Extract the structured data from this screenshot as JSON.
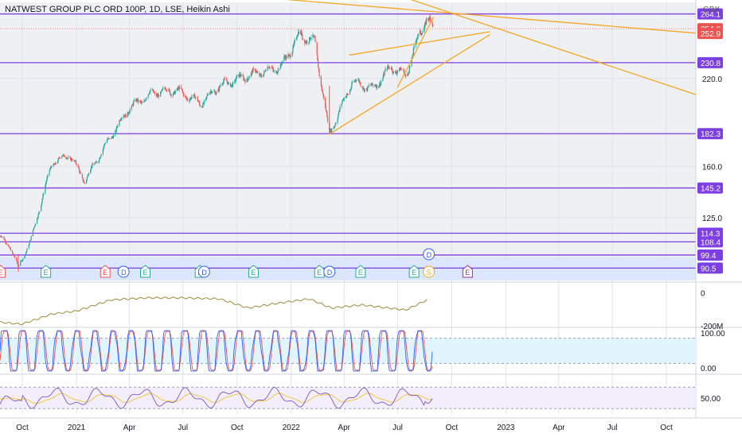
{
  "symbol_title": "NATWEST GROUP PLC ORD 100P, 1D, LSE, Heikin Ashi",
  "currency": "GBX",
  "colors": {
    "up": "#26a69a",
    "down": "#ef5350",
    "level": "#7b3fe4",
    "trend": "#f5a623",
    "zone": "#dde6ff",
    "last_price": "#ef5350",
    "volume_line": "#a08a3a",
    "stoch_k": "#2962ff",
    "stoch_d": "#ef5350",
    "rsi": "#7e57c2",
    "rsi_ma": "#f5c542"
  },
  "chart_data": {
    "type": "candlestick",
    "style": "Heikin Ashi",
    "interval": "1D",
    "x_axis": {
      "start": "2020-08-24",
      "end": "2023-11-20",
      "tick_labels": [
        "Oct",
        "2021",
        "Apr",
        "Jul",
        "Oct",
        "2022",
        "Apr",
        "Jul",
        "Oct",
        "2023",
        "Apr",
        "Jul",
        "Oct"
      ]
    },
    "y_axis": {
      "range": [
        82,
        272
      ],
      "tick_labels": [
        "220.0",
        "160.0",
        "125.0"
      ],
      "tick_values": [
        220,
        160,
        125
      ]
    },
    "price_path": [
      {
        "date": "2020-08-24",
        "price": 112
      },
      {
        "date": "2020-09-10",
        "price": 105
      },
      {
        "date": "2020-09-24",
        "price": 91
      },
      {
        "date": "2020-10-15",
        "price": 109
      },
      {
        "date": "2020-11-20",
        "price": 162
      },
      {
        "date": "2020-12-20",
        "price": 168
      },
      {
        "date": "2021-01-15",
        "price": 150
      },
      {
        "date": "2021-02-20",
        "price": 175
      },
      {
        "date": "2021-04-01",
        "price": 200
      },
      {
        "date": "2021-05-10",
        "price": 210
      },
      {
        "date": "2021-06-20",
        "price": 212
      },
      {
        "date": "2021-08-01",
        "price": 203
      },
      {
        "date": "2021-09-01",
        "price": 215
      },
      {
        "date": "2021-10-20",
        "price": 222
      },
      {
        "date": "2021-12-15",
        "price": 228
      },
      {
        "date": "2022-01-15",
        "price": 250
      },
      {
        "date": "2022-02-10",
        "price": 245
      },
      {
        "date": "2022-03-07",
        "price": 182
      },
      {
        "date": "2022-04-15",
        "price": 218
      },
      {
        "date": "2022-05-20",
        "price": 213
      },
      {
        "date": "2022-06-20",
        "price": 228
      },
      {
        "date": "2022-07-15",
        "price": 222
      },
      {
        "date": "2022-08-05",
        "price": 248
      },
      {
        "date": "2022-08-20",
        "price": 262
      },
      {
        "date": "2022-08-30",
        "price": 254
      }
    ],
    "horizontal_levels": [
      {
        "value": 264.1,
        "label": "264.1"
      },
      {
        "value": 230.8,
        "label": "230.8"
      },
      {
        "value": 182.3,
        "label": "182.3"
      },
      {
        "value": 145.2,
        "label": "145.2"
      },
      {
        "value": 114.3,
        "label": "114.3"
      },
      {
        "value": 108.4,
        "label": "108.4"
      },
      {
        "value": 99.4,
        "label": "99.4"
      },
      {
        "value": 90.5,
        "label": "90.5"
      }
    ],
    "last_price": {
      "value": 254.0,
      "label": "254.0"
    },
    "prev_close": {
      "value": 252.9,
      "label": "252.9"
    },
    "zone": {
      "from": 82,
      "to": 98
    },
    "trendlines": [
      {
        "from": {
          "date": "2020-08-24",
          "price": 290
        },
        "to": {
          "date": "2023-11-20",
          "price": 251
        }
      },
      {
        "from": {
          "date": "2022-01-10",
          "price": 300
        },
        "to": {
          "date": "2023-11-20",
          "price": 209
        }
      },
      {
        "from": {
          "date": "2022-03-07",
          "price": 182
        },
        "to": {
          "date": "2022-12-05",
          "price": 250
        }
      },
      {
        "from": {
          "date": "2022-04-10",
          "price": 236
        },
        "to": {
          "date": "2022-12-05",
          "price": 252
        }
      },
      {
        "from": {
          "date": "2022-07-01",
          "price": 214
        },
        "to": {
          "date": "2022-08-31",
          "price": 262
        }
      }
    ],
    "events": [
      {
        "date": "2020-08-25",
        "type": "E",
        "kind": "earnings-neg"
      },
      {
        "date": "2020-11-10",
        "type": "E",
        "kind": "earnings-pos"
      },
      {
        "date": "2021-02-19",
        "type": "E",
        "kind": "earnings-neg"
      },
      {
        "date": "2021-03-22",
        "type": "D",
        "kind": "dividend"
      },
      {
        "date": "2021-04-28",
        "type": "E",
        "kind": "earnings-pos"
      },
      {
        "date": "2021-07-30",
        "type": "E",
        "kind": "earnings-pos"
      },
      {
        "date": "2021-08-06",
        "type": "D",
        "kind": "dividend"
      },
      {
        "date": "2021-10-29",
        "type": "E",
        "kind": "earnings-pos"
      },
      {
        "date": "2022-02-18",
        "type": "E",
        "kind": "earnings-pos"
      },
      {
        "date": "2022-03-07",
        "type": "D",
        "kind": "dividend"
      },
      {
        "date": "2022-04-29",
        "type": "E",
        "kind": "earnings-pos"
      },
      {
        "date": "2022-07-29",
        "type": "E",
        "kind": "earnings-pos"
      },
      {
        "date": "2022-08-23",
        "type": "S",
        "kind": "split"
      },
      {
        "date": "2022-08-23",
        "type": "D",
        "kind": "dividend-upcoming",
        "row": "upper"
      },
      {
        "date": "2022-10-28",
        "type": "E",
        "kind": "earnings-future"
      }
    ],
    "volume_indicator": {
      "tick_labels": [
        "0",
        "-200M"
      ],
      "path": [
        {
          "date": "2020-08-24",
          "value": -0.9
        },
        {
          "date": "2020-09-30",
          "value": -1.0
        },
        {
          "date": "2020-11-20",
          "value": -0.5
        },
        {
          "date": "2021-01-01",
          "value": -0.35
        },
        {
          "date": "2021-03-01",
          "value": 0.2
        },
        {
          "date": "2021-05-01",
          "value": 0.3
        },
        {
          "date": "2021-07-01",
          "value": 0.3
        },
        {
          "date": "2021-09-01",
          "value": 0.25
        },
        {
          "date": "2021-10-20",
          "value": -0.2
        },
        {
          "date": "2021-12-01",
          "value": 0.0
        },
        {
          "date": "2022-02-01",
          "value": 0.25
        },
        {
          "date": "2022-03-10",
          "value": -0.2
        },
        {
          "date": "2022-05-01",
          "value": -0.05
        },
        {
          "date": "2022-07-15",
          "value": -0.3
        },
        {
          "date": "2022-08-20",
          "value": 0.2
        }
      ]
    },
    "stochastic": {
      "tick_labels": [
        "100.00",
        "0.00"
      ],
      "band": [
        20,
        80
      ],
      "cycles": 24
    },
    "rsi": {
      "tick_labels": [
        "50.00"
      ],
      "band": [
        30,
        70
      ]
    }
  }
}
